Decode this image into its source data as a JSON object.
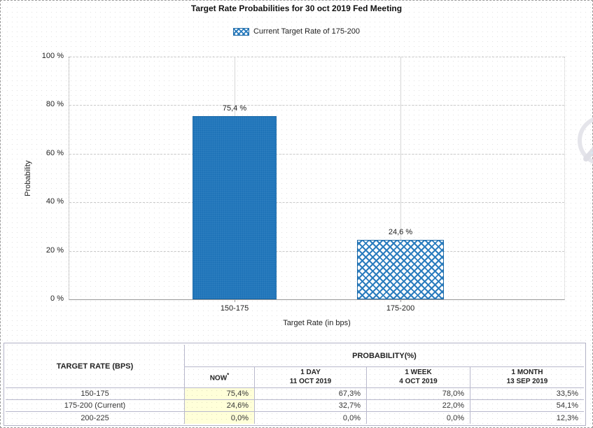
{
  "colors": {
    "bar_blue": "#2a7cbe",
    "bar_border_blue": "#1d6aa8",
    "highlight_yellow": "#ffffd9",
    "table_border": "#b8b8cc",
    "gridline_gray": "#c9c9c9"
  },
  "chart": {
    "title": "Target Rate Probabilities for 30 oct 2019 Fed Meeting",
    "legend_label": "Current Target Rate of 175-200",
    "ylabel": "Probability",
    "xlabel": "Target Rate (in bps)",
    "yticks": [
      "100 %",
      "80 %",
      "60 %",
      "40 %",
      "20 %",
      "0 %"
    ],
    "bars": [
      {
        "category": "150-175",
        "value_label": "75,4 %"
      },
      {
        "category": "175-200",
        "value_label": "24,6 %"
      }
    ]
  },
  "chart_data": [
    {
      "type": "bar",
      "title": "Target Rate Probabilities for 30 oct 2019 Fed Meeting",
      "categories": [
        "150-175",
        "175-200"
      ],
      "values": [
        75.4,
        24.6
      ],
      "bar_labels": [
        "75,4 %",
        "24,6 %"
      ],
      "bar_styles": [
        "solid",
        "crosshatch"
      ],
      "xlabel": "Target Rate (in bps)",
      "ylabel": "Probability",
      "ylim": [
        0,
        100
      ],
      "ytick_values": [
        0,
        20,
        40,
        60,
        80,
        100
      ],
      "legend": [
        "Current Target Rate of 175-200"
      ],
      "legend_position": "top",
      "grid": true
    },
    {
      "type": "table",
      "corner_header": "TARGET RATE (BPS)",
      "group_header": "PROBABILITY(%)",
      "columns": [
        "NOW *",
        "1 DAY 11 OCT 2019",
        "1 WEEK 4 OCT 2019",
        "1 MONTH 13 SEP 2019"
      ],
      "rows": [
        {
          "label": "150-175",
          "values": [
            "75,4%",
            "67,3%",
            "78,0%",
            "33,5%"
          ]
        },
        {
          "label": "175-200 (Current)",
          "values": [
            "24,6%",
            "32,7%",
            "22,0%",
            "54,1%"
          ]
        },
        {
          "label": "200-225",
          "values": [
            "0,0%",
            "0,0%",
            "0,0%",
            "12,3%"
          ]
        }
      ]
    }
  ],
  "table": {
    "corner_header": "TARGET RATE (BPS)",
    "group_header": "PROBABILITY(%)",
    "col_now": {
      "label": "NOW",
      "sup": "*"
    },
    "col_1day": {
      "l1": "1 DAY",
      "l2": "11 OCT 2019"
    },
    "col_1week": {
      "l1": "1 WEEK",
      "l2": "4 OCT 2019"
    },
    "col_1month": {
      "l1": "1 MONTH",
      "l2": "13 SEP 2019"
    },
    "rows": [
      {
        "label": "150-175",
        "now": "75,4%",
        "d1": "67,3%",
        "w1": "78,0%",
        "m1": "33,5%"
      },
      {
        "label": "175-200 (Current)",
        "now": "24,6%",
        "d1": "32,7%",
        "w1": "22,0%",
        "m1": "54,1%"
      },
      {
        "label": "200-225",
        "now": "0,0%",
        "d1": "0,0%",
        "w1": "0,0%",
        "m1": "12,3%"
      }
    ]
  }
}
